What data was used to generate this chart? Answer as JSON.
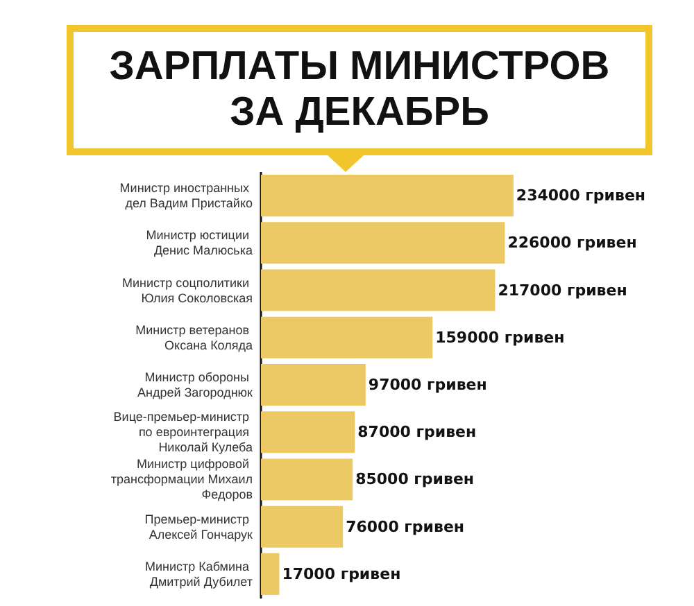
{
  "chart_data": {
    "type": "bar",
    "orientation": "horizontal",
    "title": "ЗАРПЛАТЫ МИНИСТРОВ ЗА ДЕКАБРЬ",
    "categories": [
      "Министр иностранных дел Вадим Пристайко",
      "Министр юстиции Денис Малюська",
      "Министр соцполитики Юлия Соколовская",
      "Министр ветеранов Оксана Коляда",
      "Министр обороны Андрей Загороднюк",
      "Вице-премьер-министр по евроинтеграция Николай Кулеба",
      "Министр цифровой трансформации Михаил Федоров",
      "Премьер-министр Алексей Гончарук",
      "Министр Кабмина Дмитрий Дубилет"
    ],
    "values": [
      234000,
      226000,
      217000,
      159000,
      97000,
      87000,
      85000,
      76000,
      17000
    ],
    "value_labels": [
      "234000 гривен",
      "226000 гривен",
      "217000 гривен",
      "159000 гривен",
      "97000 гривен",
      "87000 гривен",
      "85000 гривен",
      "76000 гривен",
      "17000 гривен"
    ],
    "color": "#ecc964"
  }
}
